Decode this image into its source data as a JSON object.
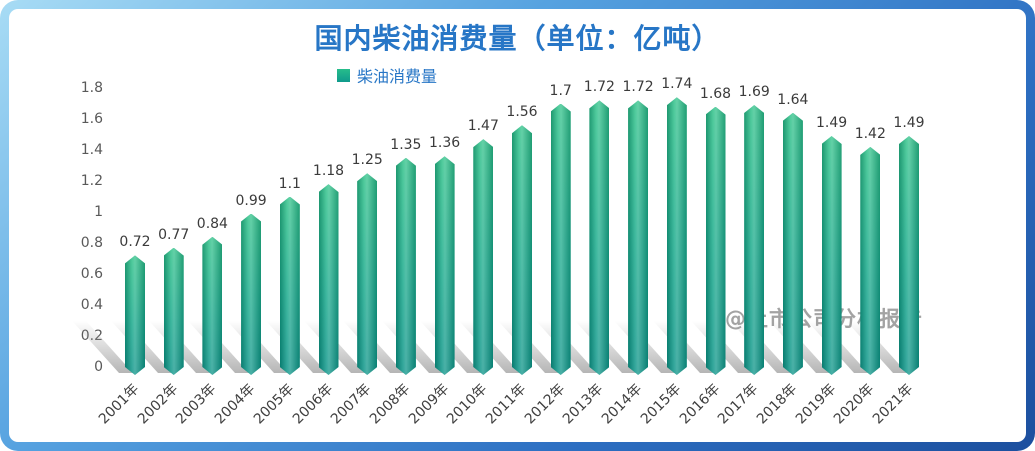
{
  "title": "国内柴油消费量（单位：亿吨）",
  "watermark": "@上市公司分析报告",
  "colors": {
    "title": "#2776c6",
    "bar_gradient_top": "#2ec188",
    "bar_gradient_bottom": "#0b9488",
    "frame_gradient": [
      "#a8dcf5",
      "#56a2e0",
      "#2d6fc2",
      "#1c4f9e"
    ],
    "axis_text": "#595959",
    "watermark_text": "#a3a3a3"
  },
  "chart_data": {
    "type": "bar",
    "title": "国内柴油消费量（单位：亿吨）",
    "legend_label": "柴油消费量",
    "legend_position": "top",
    "grid": false,
    "categories": [
      "2001年",
      "2002年",
      "2003年",
      "2004年",
      "2005年",
      "2006年",
      "2007年",
      "2008年",
      "2009年",
      "2010年",
      "2011年",
      "2012年",
      "2013年",
      "2014年",
      "2015年",
      "2016年",
      "2017年",
      "2018年",
      "2019年",
      "2020年",
      "2021年"
    ],
    "values": [
      0.72,
      0.77,
      0.84,
      0.99,
      1.1,
      1.18,
      1.25,
      1.35,
      1.36,
      1.47,
      1.56,
      1.7,
      1.72,
      1.72,
      1.74,
      1.68,
      1.69,
      1.64,
      1.49,
      1.42,
      1.49
    ],
    "value_labels": [
      "0.72",
      "0.77",
      "0.84",
      "0.99",
      "1.1",
      "1.18",
      "1.25",
      "1.35",
      "1.36",
      "1.47",
      "1.56",
      "1.7",
      "1.72",
      "1.72",
      "1.74",
      "1.68",
      "1.69",
      "1.64",
      "1.49",
      "1.42",
      "1.49"
    ],
    "ylim": [
      0,
      1.8
    ],
    "yticks": [
      0,
      0.2,
      0.4,
      0.6,
      0.8,
      1,
      1.2,
      1.4,
      1.6,
      1.8
    ],
    "ytick_labels": [
      "0",
      "0.2",
      "0.4",
      "0.6",
      "0.8",
      "1",
      "1.2",
      "1.4",
      "1.6",
      "1.8"
    ],
    "xlabel": "",
    "ylabel": ""
  }
}
